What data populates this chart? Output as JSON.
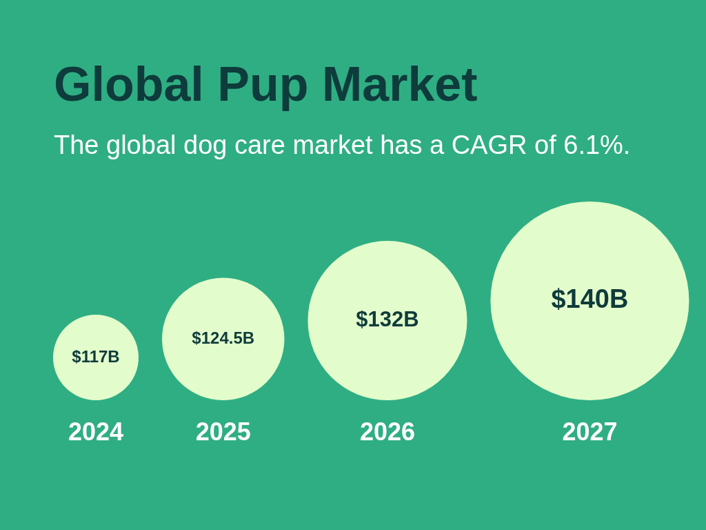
{
  "chart_data": {
    "type": "other",
    "title": "Global Pup Market",
    "subtitle": "The global dog care market has a CAGR of 6.1%.",
    "categories": [
      "2024",
      "2025",
      "2026",
      "2027"
    ],
    "values": [
      117,
      124.5,
      132,
      140
    ],
    "value_labels": [
      "$117B",
      "$124.5B",
      "$132B",
      "$140B"
    ],
    "color": "#e3fccb"
  }
}
